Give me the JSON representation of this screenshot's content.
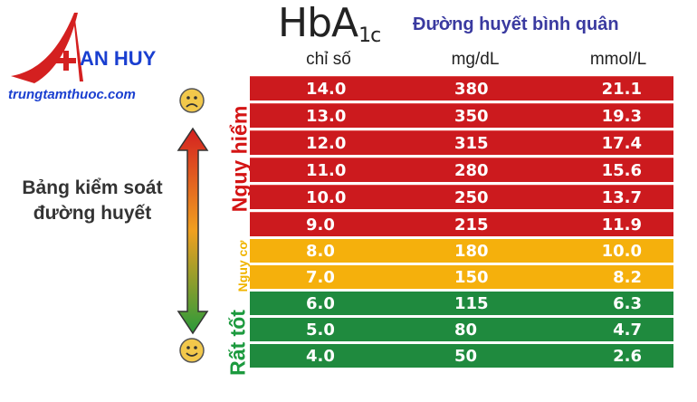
{
  "logo": {
    "brand": "AN HUY",
    "site": "trungtamthuoc.com"
  },
  "header": {
    "hba_main": "HbA",
    "hba_sub": "1c",
    "average_title": "Đường huyết bình quân",
    "col_index": "chỉ số",
    "col_mgdl": "mg/dL",
    "col_mmol": "mmol/L"
  },
  "left_label": {
    "line1": "Bảng kiểm soát",
    "line2": "đường huyết"
  },
  "side_labels": {
    "danger": "Nguy hiểm",
    "risk": "Nguy cơ",
    "good": "Rất tốt"
  },
  "colors": {
    "danger": "#cc1a1e",
    "risk": "#f5b00c",
    "good": "#1f8a3e"
  },
  "rows": [
    {
      "hba1c": "14.0",
      "mgdl": "380",
      "mmol": "21.1",
      "level": "danger"
    },
    {
      "hba1c": "13.0",
      "mgdl": "350",
      "mmol": "19.3",
      "level": "danger"
    },
    {
      "hba1c": "12.0",
      "mgdl": "315",
      "mmol": "17.4",
      "level": "danger"
    },
    {
      "hba1c": "11.0",
      "mgdl": "280",
      "mmol": "15.6",
      "level": "danger"
    },
    {
      "hba1c": "10.0",
      "mgdl": "250",
      "mmol": "13.7",
      "level": "danger"
    },
    {
      "hba1c": "9.0",
      "mgdl": "215",
      "mmol": "11.9",
      "level": "danger"
    },
    {
      "hba1c": "8.0",
      "mgdl": "180",
      "mmol": "10.0",
      "level": "risk"
    },
    {
      "hba1c": "7.0",
      "mgdl": "150",
      "mmol": "8.2",
      "level": "risk"
    },
    {
      "hba1c": "6.0",
      "mgdl": "115",
      "mmol": "6.3",
      "level": "good"
    },
    {
      "hba1c": "5.0",
      "mgdl": "80",
      "mmol": "4.7",
      "level": "good"
    },
    {
      "hba1c": "4.0",
      "mgdl": "50",
      "mmol": "2.6",
      "level": "good"
    }
  ],
  "icons": {
    "top_face": "sad-face-icon",
    "bottom_face": "happy-face-icon",
    "arrow": "double-arrow-icon"
  }
}
